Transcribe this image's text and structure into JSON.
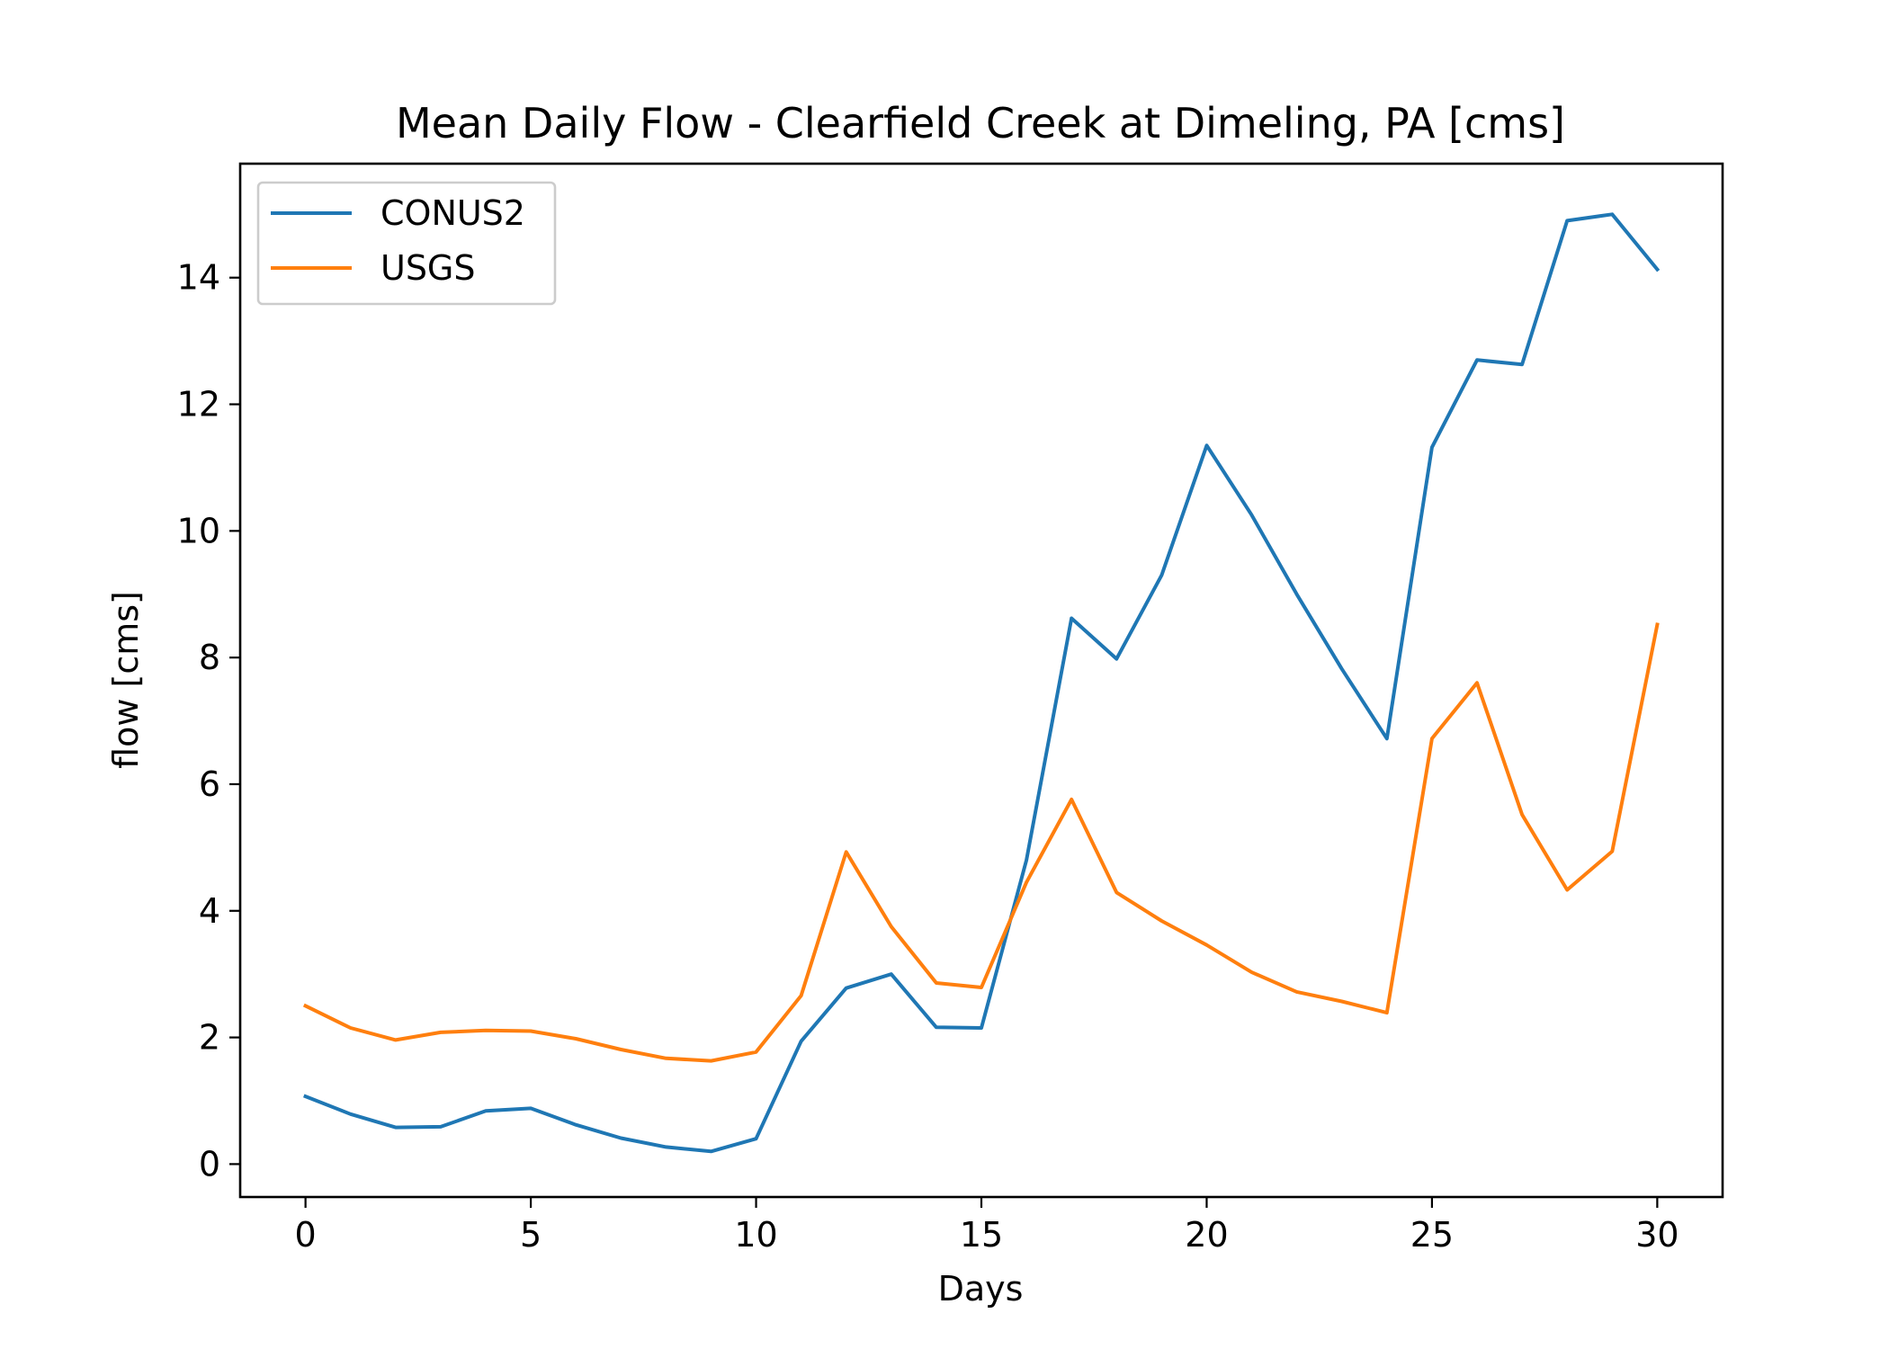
{
  "chart_data": {
    "type": "line",
    "title": "Mean Daily Flow - Clearfield Creek at Dimeling, PA [cms]",
    "xlabel": "Days",
    "ylabel": "flow [cms]",
    "xlim": [
      -1.45,
      31.45
    ],
    "ylim": [
      -0.52,
      15.8
    ],
    "xticks": [
      0,
      5,
      10,
      15,
      20,
      25,
      30
    ],
    "yticks": [
      0,
      2,
      4,
      6,
      8,
      10,
      12,
      14
    ],
    "grid": false,
    "legend_position": "upper-left",
    "x": [
      0,
      1,
      2,
      3,
      4,
      5,
      6,
      7,
      8,
      9,
      10,
      11,
      12,
      13,
      14,
      15,
      16,
      17,
      18,
      19,
      20,
      21,
      22,
      23,
      24,
      25,
      26,
      27,
      28,
      29,
      30
    ],
    "series": [
      {
        "name": "CONUS2",
        "color": "#1f77b4",
        "values": [
          1.07,
          0.79,
          0.58,
          0.59,
          0.84,
          0.88,
          0.62,
          0.41,
          0.27,
          0.2,
          0.4,
          1.94,
          2.78,
          3.0,
          2.16,
          2.15,
          4.8,
          8.62,
          7.98,
          9.3,
          11.35,
          10.25,
          9.0,
          7.82,
          6.72,
          11.32,
          12.7,
          12.63,
          14.9,
          15.0,
          14.13
        ]
      },
      {
        "name": "USGS",
        "color": "#ff7f0e",
        "values": [
          2.5,
          2.15,
          1.96,
          2.08,
          2.11,
          2.1,
          1.98,
          1.81,
          1.67,
          1.63,
          1.77,
          2.66,
          4.93,
          3.75,
          2.86,
          2.79,
          4.45,
          5.76,
          4.29,
          3.84,
          3.46,
          3.03,
          2.72,
          2.57,
          2.39,
          6.72,
          7.6,
          5.52,
          4.33,
          4.94,
          8.52
        ]
      }
    ]
  }
}
